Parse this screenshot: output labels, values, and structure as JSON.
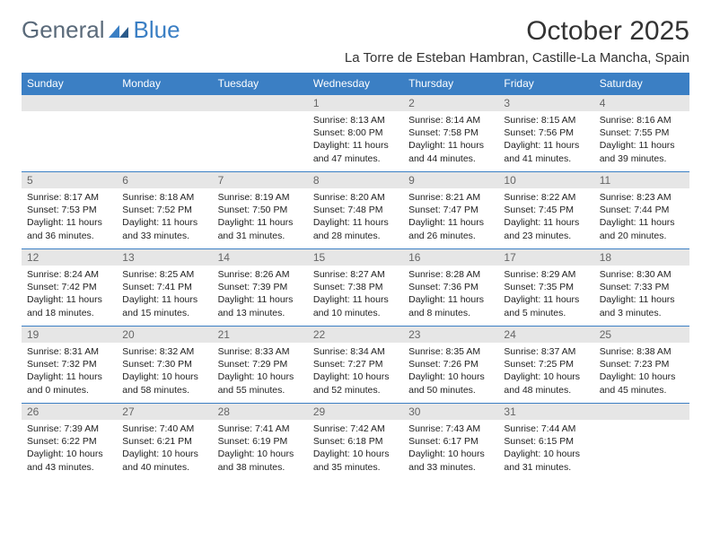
{
  "logo": {
    "text_general": "General",
    "text_blue": "Blue"
  },
  "title": "October 2025",
  "location": "La Torre de Esteban Hambran, Castille-La Mancha, Spain",
  "colors": {
    "header_bg": "#3b7fc4",
    "header_text": "#ffffff",
    "daynum_bg": "#e6e6e6",
    "daynum_text": "#666666",
    "border": "#3b7fc4",
    "body_text": "#222222"
  },
  "day_headers": [
    "Sunday",
    "Monday",
    "Tuesday",
    "Wednesday",
    "Thursday",
    "Friday",
    "Saturday"
  ],
  "weeks": [
    [
      null,
      null,
      null,
      {
        "n": "1",
        "sr": "8:13 AM",
        "ss": "8:00 PM",
        "dl": "11 hours and 47 minutes."
      },
      {
        "n": "2",
        "sr": "8:14 AM",
        "ss": "7:58 PM",
        "dl": "11 hours and 44 minutes."
      },
      {
        "n": "3",
        "sr": "8:15 AM",
        "ss": "7:56 PM",
        "dl": "11 hours and 41 minutes."
      },
      {
        "n": "4",
        "sr": "8:16 AM",
        "ss": "7:55 PM",
        "dl": "11 hours and 39 minutes."
      }
    ],
    [
      {
        "n": "5",
        "sr": "8:17 AM",
        "ss": "7:53 PM",
        "dl": "11 hours and 36 minutes."
      },
      {
        "n": "6",
        "sr": "8:18 AM",
        "ss": "7:52 PM",
        "dl": "11 hours and 33 minutes."
      },
      {
        "n": "7",
        "sr": "8:19 AM",
        "ss": "7:50 PM",
        "dl": "11 hours and 31 minutes."
      },
      {
        "n": "8",
        "sr": "8:20 AM",
        "ss": "7:48 PM",
        "dl": "11 hours and 28 minutes."
      },
      {
        "n": "9",
        "sr": "8:21 AM",
        "ss": "7:47 PM",
        "dl": "11 hours and 26 minutes."
      },
      {
        "n": "10",
        "sr": "8:22 AM",
        "ss": "7:45 PM",
        "dl": "11 hours and 23 minutes."
      },
      {
        "n": "11",
        "sr": "8:23 AM",
        "ss": "7:44 PM",
        "dl": "11 hours and 20 minutes."
      }
    ],
    [
      {
        "n": "12",
        "sr": "8:24 AM",
        "ss": "7:42 PM",
        "dl": "11 hours and 18 minutes."
      },
      {
        "n": "13",
        "sr": "8:25 AM",
        "ss": "7:41 PM",
        "dl": "11 hours and 15 minutes."
      },
      {
        "n": "14",
        "sr": "8:26 AM",
        "ss": "7:39 PM",
        "dl": "11 hours and 13 minutes."
      },
      {
        "n": "15",
        "sr": "8:27 AM",
        "ss": "7:38 PM",
        "dl": "11 hours and 10 minutes."
      },
      {
        "n": "16",
        "sr": "8:28 AM",
        "ss": "7:36 PM",
        "dl": "11 hours and 8 minutes."
      },
      {
        "n": "17",
        "sr": "8:29 AM",
        "ss": "7:35 PM",
        "dl": "11 hours and 5 minutes."
      },
      {
        "n": "18",
        "sr": "8:30 AM",
        "ss": "7:33 PM",
        "dl": "11 hours and 3 minutes."
      }
    ],
    [
      {
        "n": "19",
        "sr": "8:31 AM",
        "ss": "7:32 PM",
        "dl": "11 hours and 0 minutes."
      },
      {
        "n": "20",
        "sr": "8:32 AM",
        "ss": "7:30 PM",
        "dl": "10 hours and 58 minutes."
      },
      {
        "n": "21",
        "sr": "8:33 AM",
        "ss": "7:29 PM",
        "dl": "10 hours and 55 minutes."
      },
      {
        "n": "22",
        "sr": "8:34 AM",
        "ss": "7:27 PM",
        "dl": "10 hours and 52 minutes."
      },
      {
        "n": "23",
        "sr": "8:35 AM",
        "ss": "7:26 PM",
        "dl": "10 hours and 50 minutes."
      },
      {
        "n": "24",
        "sr": "8:37 AM",
        "ss": "7:25 PM",
        "dl": "10 hours and 48 minutes."
      },
      {
        "n": "25",
        "sr": "8:38 AM",
        "ss": "7:23 PM",
        "dl": "10 hours and 45 minutes."
      }
    ],
    [
      {
        "n": "26",
        "sr": "7:39 AM",
        "ss": "6:22 PM",
        "dl": "10 hours and 43 minutes."
      },
      {
        "n": "27",
        "sr": "7:40 AM",
        "ss": "6:21 PM",
        "dl": "10 hours and 40 minutes."
      },
      {
        "n": "28",
        "sr": "7:41 AM",
        "ss": "6:19 PM",
        "dl": "10 hours and 38 minutes."
      },
      {
        "n": "29",
        "sr": "7:42 AM",
        "ss": "6:18 PM",
        "dl": "10 hours and 35 minutes."
      },
      {
        "n": "30",
        "sr": "7:43 AM",
        "ss": "6:17 PM",
        "dl": "10 hours and 33 minutes."
      },
      {
        "n": "31",
        "sr": "7:44 AM",
        "ss": "6:15 PM",
        "dl": "10 hours and 31 minutes."
      },
      null
    ]
  ],
  "labels": {
    "sunrise": "Sunrise:",
    "sunset": "Sunset:",
    "daylight": "Daylight:"
  }
}
